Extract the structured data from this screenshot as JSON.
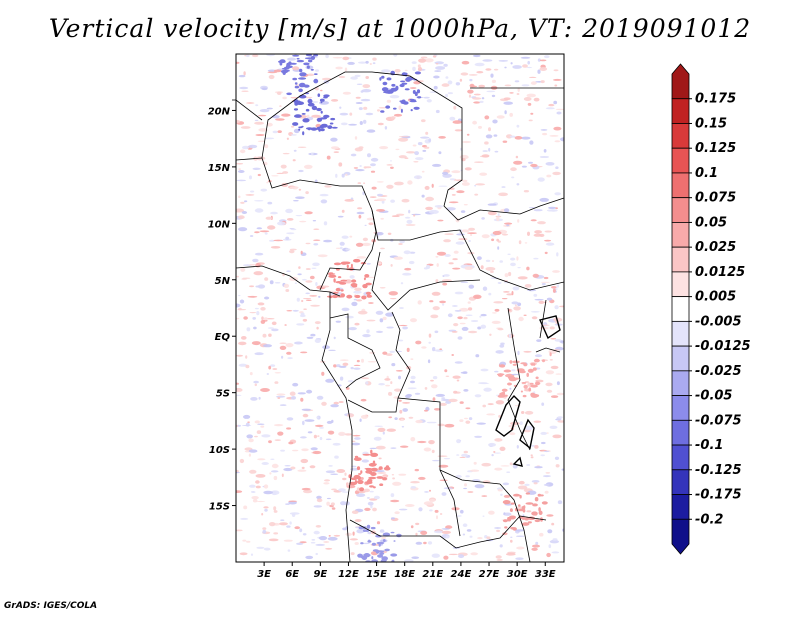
{
  "title": "Vertical velocity [m/s] at 1000hPa, VT: 2019091012",
  "credit": "GrADS: IGES/COLA",
  "chart_data": {
    "type": "heatmap",
    "title": "Vertical velocity [m/s] at 1000hPa, VT: 2019091012",
    "variable": "Vertical velocity",
    "units": "m/s",
    "level": "1000hPa",
    "valid_time": "2019091012",
    "xlim": [
      0,
      35
    ],
    "ylim": [
      -20,
      25
    ],
    "x_ticks": [
      {
        "value": 3,
        "label": "3E"
      },
      {
        "value": 6,
        "label": "6E"
      },
      {
        "value": 9,
        "label": "9E"
      },
      {
        "value": 12,
        "label": "12E"
      },
      {
        "value": 15,
        "label": "15E"
      },
      {
        "value": 18,
        "label": "18E"
      },
      {
        "value": 21,
        "label": "21E"
      },
      {
        "value": 24,
        "label": "24E"
      },
      {
        "value": 27,
        "label": "27E"
      },
      {
        "value": 30,
        "label": "30E"
      },
      {
        "value": 33,
        "label": "33E"
      }
    ],
    "y_ticks": [
      {
        "value": 20,
        "label": "20N"
      },
      {
        "value": 15,
        "label": "15N"
      },
      {
        "value": 10,
        "label": "10N"
      },
      {
        "value": 5,
        "label": "5N"
      },
      {
        "value": 0,
        "label": "EQ"
      },
      {
        "value": -5,
        "label": "5S"
      },
      {
        "value": -10,
        "label": "10S"
      },
      {
        "value": -15,
        "label": "15S"
      }
    ],
    "colorbar": {
      "labels": [
        "0.175",
        "0.15",
        "0.125",
        "0.1",
        "0.075",
        "0.05",
        "0.025",
        "0.0125",
        "0.005",
        "-0.005",
        "-0.0125",
        "-0.025",
        "-0.05",
        "-0.075",
        "-0.1",
        "-0.125",
        "-0.175",
        "-0.2"
      ],
      "colors": [
        "#a01818",
        "#c02222",
        "#d83a3a",
        "#e85454",
        "#ee7070",
        "#f48e8e",
        "#f8aaaa",
        "#fbc6c6",
        "#fde2e2",
        "#ffffff",
        "#e4e4fb",
        "#c8c8f5",
        "#aaaaf0",
        "#8c8ceb",
        "#6e6ee0",
        "#5050d2",
        "#3434bb",
        "#1c1ca0",
        "#10108a"
      ],
      "extend": "both"
    }
  }
}
